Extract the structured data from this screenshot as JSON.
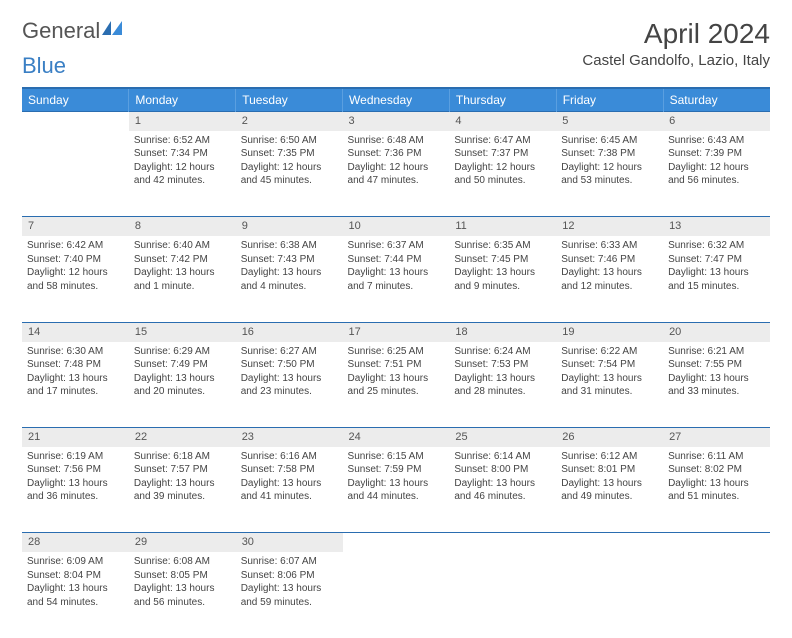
{
  "logo": {
    "text1": "General",
    "text2": "Blue"
  },
  "title": "April 2024",
  "location": "Castel Gandolfo, Lazio, Italy",
  "colors": {
    "header_bg": "#3a8bd8",
    "header_border": "#2a6db0",
    "daynum_bg": "#ececec",
    "text": "#444444",
    "logo_blue": "#3a7fc4"
  },
  "day_headers": [
    "Sunday",
    "Monday",
    "Tuesday",
    "Wednesday",
    "Thursday",
    "Friday",
    "Saturday"
  ],
  "weeks": [
    {
      "nums": [
        "",
        "1",
        "2",
        "3",
        "4",
        "5",
        "6"
      ],
      "cells": [
        null,
        {
          "sr": "Sunrise: 6:52 AM",
          "ss": "Sunset: 7:34 PM",
          "dl1": "Daylight: 12 hours",
          "dl2": "and 42 minutes."
        },
        {
          "sr": "Sunrise: 6:50 AM",
          "ss": "Sunset: 7:35 PM",
          "dl1": "Daylight: 12 hours",
          "dl2": "and 45 minutes."
        },
        {
          "sr": "Sunrise: 6:48 AM",
          "ss": "Sunset: 7:36 PM",
          "dl1": "Daylight: 12 hours",
          "dl2": "and 47 minutes."
        },
        {
          "sr": "Sunrise: 6:47 AM",
          "ss": "Sunset: 7:37 PM",
          "dl1": "Daylight: 12 hours",
          "dl2": "and 50 minutes."
        },
        {
          "sr": "Sunrise: 6:45 AM",
          "ss": "Sunset: 7:38 PM",
          "dl1": "Daylight: 12 hours",
          "dl2": "and 53 minutes."
        },
        {
          "sr": "Sunrise: 6:43 AM",
          "ss": "Sunset: 7:39 PM",
          "dl1": "Daylight: 12 hours",
          "dl2": "and 56 minutes."
        }
      ]
    },
    {
      "nums": [
        "7",
        "8",
        "9",
        "10",
        "11",
        "12",
        "13"
      ],
      "cells": [
        {
          "sr": "Sunrise: 6:42 AM",
          "ss": "Sunset: 7:40 PM",
          "dl1": "Daylight: 12 hours",
          "dl2": "and 58 minutes."
        },
        {
          "sr": "Sunrise: 6:40 AM",
          "ss": "Sunset: 7:42 PM",
          "dl1": "Daylight: 13 hours",
          "dl2": "and 1 minute."
        },
        {
          "sr": "Sunrise: 6:38 AM",
          "ss": "Sunset: 7:43 PM",
          "dl1": "Daylight: 13 hours",
          "dl2": "and 4 minutes."
        },
        {
          "sr": "Sunrise: 6:37 AM",
          "ss": "Sunset: 7:44 PM",
          "dl1": "Daylight: 13 hours",
          "dl2": "and 7 minutes."
        },
        {
          "sr": "Sunrise: 6:35 AM",
          "ss": "Sunset: 7:45 PM",
          "dl1": "Daylight: 13 hours",
          "dl2": "and 9 minutes."
        },
        {
          "sr": "Sunrise: 6:33 AM",
          "ss": "Sunset: 7:46 PM",
          "dl1": "Daylight: 13 hours",
          "dl2": "and 12 minutes."
        },
        {
          "sr": "Sunrise: 6:32 AM",
          "ss": "Sunset: 7:47 PM",
          "dl1": "Daylight: 13 hours",
          "dl2": "and 15 minutes."
        }
      ]
    },
    {
      "nums": [
        "14",
        "15",
        "16",
        "17",
        "18",
        "19",
        "20"
      ],
      "cells": [
        {
          "sr": "Sunrise: 6:30 AM",
          "ss": "Sunset: 7:48 PM",
          "dl1": "Daylight: 13 hours",
          "dl2": "and 17 minutes."
        },
        {
          "sr": "Sunrise: 6:29 AM",
          "ss": "Sunset: 7:49 PM",
          "dl1": "Daylight: 13 hours",
          "dl2": "and 20 minutes."
        },
        {
          "sr": "Sunrise: 6:27 AM",
          "ss": "Sunset: 7:50 PM",
          "dl1": "Daylight: 13 hours",
          "dl2": "and 23 minutes."
        },
        {
          "sr": "Sunrise: 6:25 AM",
          "ss": "Sunset: 7:51 PM",
          "dl1": "Daylight: 13 hours",
          "dl2": "and 25 minutes."
        },
        {
          "sr": "Sunrise: 6:24 AM",
          "ss": "Sunset: 7:53 PM",
          "dl1": "Daylight: 13 hours",
          "dl2": "and 28 minutes."
        },
        {
          "sr": "Sunrise: 6:22 AM",
          "ss": "Sunset: 7:54 PM",
          "dl1": "Daylight: 13 hours",
          "dl2": "and 31 minutes."
        },
        {
          "sr": "Sunrise: 6:21 AM",
          "ss": "Sunset: 7:55 PM",
          "dl1": "Daylight: 13 hours",
          "dl2": "and 33 minutes."
        }
      ]
    },
    {
      "nums": [
        "21",
        "22",
        "23",
        "24",
        "25",
        "26",
        "27"
      ],
      "cells": [
        {
          "sr": "Sunrise: 6:19 AM",
          "ss": "Sunset: 7:56 PM",
          "dl1": "Daylight: 13 hours",
          "dl2": "and 36 minutes."
        },
        {
          "sr": "Sunrise: 6:18 AM",
          "ss": "Sunset: 7:57 PM",
          "dl1": "Daylight: 13 hours",
          "dl2": "and 39 minutes."
        },
        {
          "sr": "Sunrise: 6:16 AM",
          "ss": "Sunset: 7:58 PM",
          "dl1": "Daylight: 13 hours",
          "dl2": "and 41 minutes."
        },
        {
          "sr": "Sunrise: 6:15 AM",
          "ss": "Sunset: 7:59 PM",
          "dl1": "Daylight: 13 hours",
          "dl2": "and 44 minutes."
        },
        {
          "sr": "Sunrise: 6:14 AM",
          "ss": "Sunset: 8:00 PM",
          "dl1": "Daylight: 13 hours",
          "dl2": "and 46 minutes."
        },
        {
          "sr": "Sunrise: 6:12 AM",
          "ss": "Sunset: 8:01 PM",
          "dl1": "Daylight: 13 hours",
          "dl2": "and 49 minutes."
        },
        {
          "sr": "Sunrise: 6:11 AM",
          "ss": "Sunset: 8:02 PM",
          "dl1": "Daylight: 13 hours",
          "dl2": "and 51 minutes."
        }
      ]
    },
    {
      "nums": [
        "28",
        "29",
        "30",
        "",
        "",
        "",
        ""
      ],
      "cells": [
        {
          "sr": "Sunrise: 6:09 AM",
          "ss": "Sunset: 8:04 PM",
          "dl1": "Daylight: 13 hours",
          "dl2": "and 54 minutes."
        },
        {
          "sr": "Sunrise: 6:08 AM",
          "ss": "Sunset: 8:05 PM",
          "dl1": "Daylight: 13 hours",
          "dl2": "and 56 minutes."
        },
        {
          "sr": "Sunrise: 6:07 AM",
          "ss": "Sunset: 8:06 PM",
          "dl1": "Daylight: 13 hours",
          "dl2": "and 59 minutes."
        },
        null,
        null,
        null,
        null
      ]
    }
  ]
}
